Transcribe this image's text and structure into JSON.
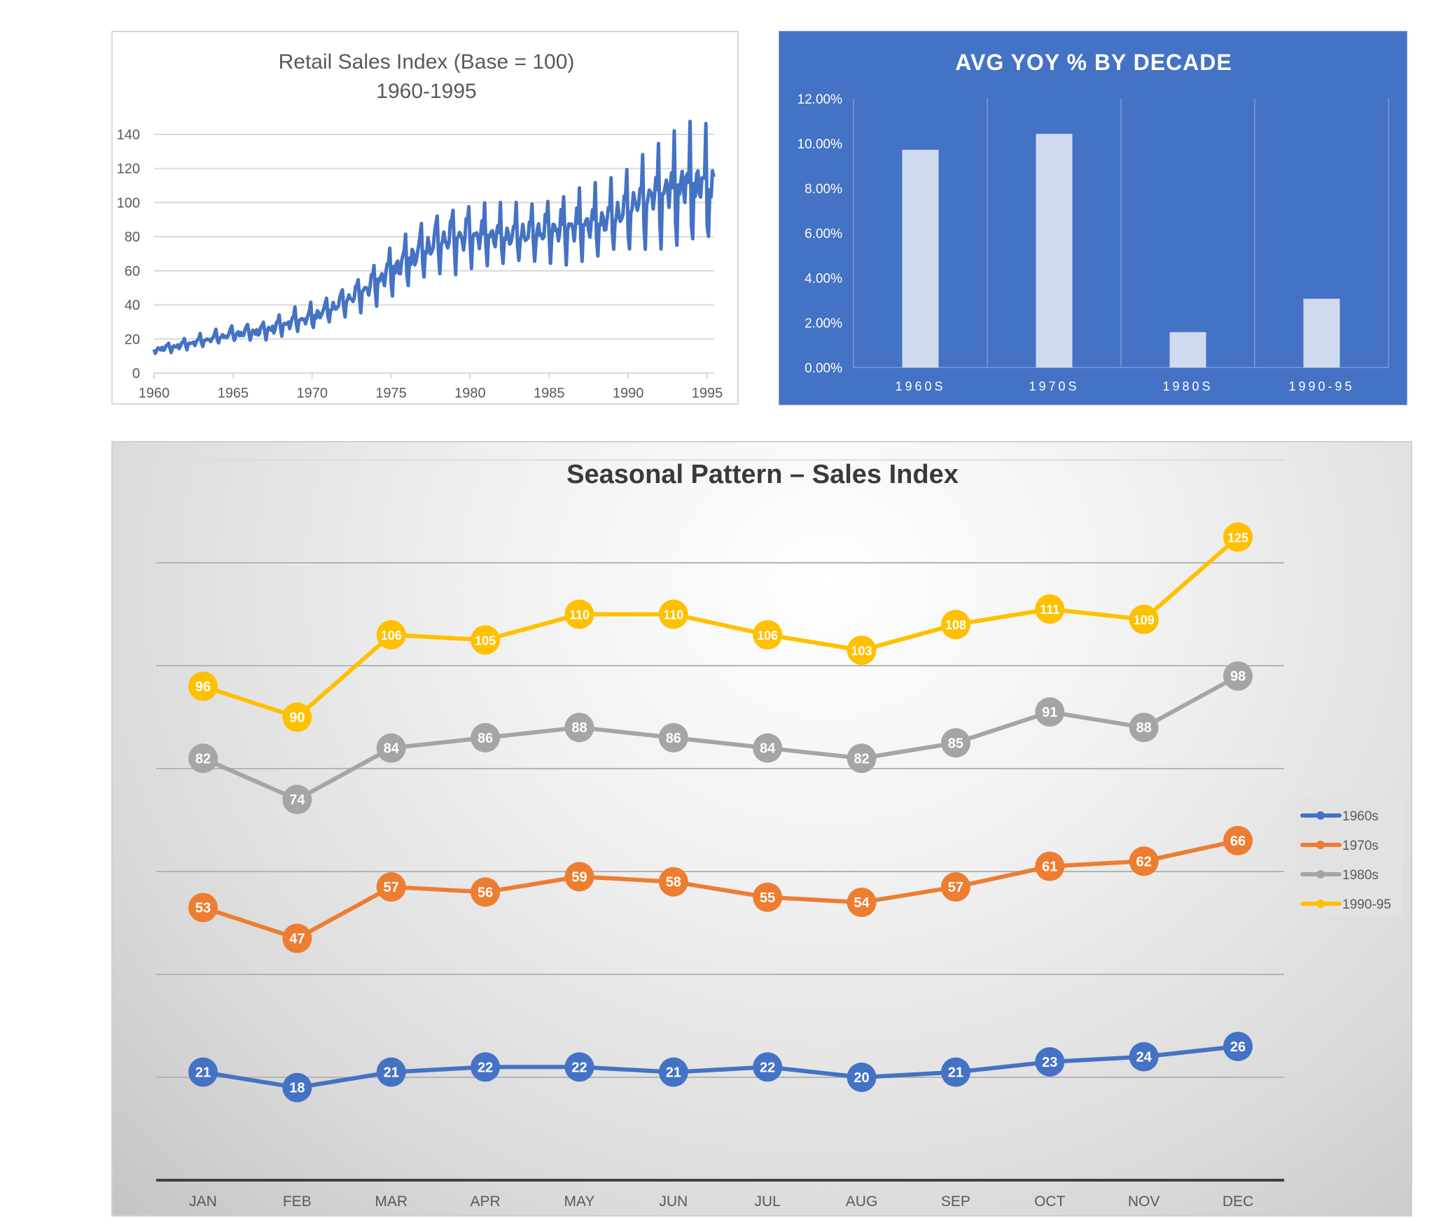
{
  "chart_data": [
    {
      "type": "line",
      "title": "Retail Sales Index (Base = 100)",
      "subtitle": "1960-1995",
      "xlim": [
        1960,
        1995
      ],
      "ylim": [
        0,
        140
      ],
      "x_ticks": [
        "1960",
        "1965",
        "1970",
        "1975",
        "1980",
        "1985",
        "1990",
        "1995"
      ],
      "y_ticks": [
        "0",
        "20",
        "40",
        "60",
        "80",
        "100",
        "120",
        "140"
      ],
      "grid": true,
      "series_color": "#4472C4",
      "annual_mean": {
        "years": [
          1960,
          1961,
          1962,
          1963,
          1964,
          1965,
          1966,
          1967,
          1968,
          1969,
          1970,
          1971,
          1972,
          1973,
          1974,
          1975,
          1976,
          1977,
          1978,
          1979,
          1980,
          1981,
          1982,
          1983,
          1984,
          1985,
          1986,
          1987,
          1988,
          1989,
          1990,
          1991,
          1992,
          1993,
          1994,
          1995
        ],
        "values": [
          14,
          15,
          17,
          19,
          21,
          23,
          24,
          25,
          28,
          31,
          33,
          37,
          42,
          47,
          53,
          60,
          66,
          72,
          77,
          80,
          80,
          81,
          80,
          81,
          82,
          84,
          85,
          87,
          88,
          91,
          97,
          101,
          105,
          108,
          110,
          109
        ]
      }
    },
    {
      "type": "bar",
      "title": "AVG YOY % BY DECADE",
      "categories": [
        "1960S",
        "1970S",
        "1980S",
        "1990-95"
      ],
      "values": [
        9.72,
        10.43,
        1.58,
        3.07
      ],
      "unit": "%",
      "ylim": [
        0,
        12
      ],
      "y_ticks": [
        "0.00%",
        "2.00%",
        "4.00%",
        "6.00%",
        "8.00%",
        "10.00%",
        "12.00%"
      ],
      "grid": false,
      "background_color": "#4472C4",
      "bar_color": "#CFDAEE"
    },
    {
      "type": "line",
      "title": "Seasonal Pattern – Sales Index",
      "categories": [
        "JAN",
        "FEB",
        "MAR",
        "APR",
        "MAY",
        "JUN",
        "JUL",
        "AUG",
        "SEP",
        "OCT",
        "NOV",
        "DEC"
      ],
      "ylim": [
        0,
        140
      ],
      "grid": true,
      "legend_position": "right",
      "series": [
        {
          "name": "1960s",
          "color": "#4472C4",
          "values": [
            21,
            18,
            21,
            22,
            22,
            21,
            22,
            20,
            21,
            23,
            24,
            26
          ]
        },
        {
          "name": "1970s",
          "color": "#ED7D31",
          "values": [
            53,
            47,
            57,
            56,
            59,
            58,
            55,
            54,
            57,
            61,
            62,
            66
          ]
        },
        {
          "name": "1980s",
          "color": "#A5A5A5",
          "values": [
            82,
            74,
            84,
            86,
            88,
            86,
            84,
            82,
            85,
            91,
            88,
            98
          ]
        },
        {
          "name": "1990-95",
          "color": "#FFC000",
          "values": [
            96,
            90,
            106,
            105,
            110,
            110,
            106,
            103,
            108,
            111,
            109,
            125
          ]
        }
      ]
    }
  ]
}
